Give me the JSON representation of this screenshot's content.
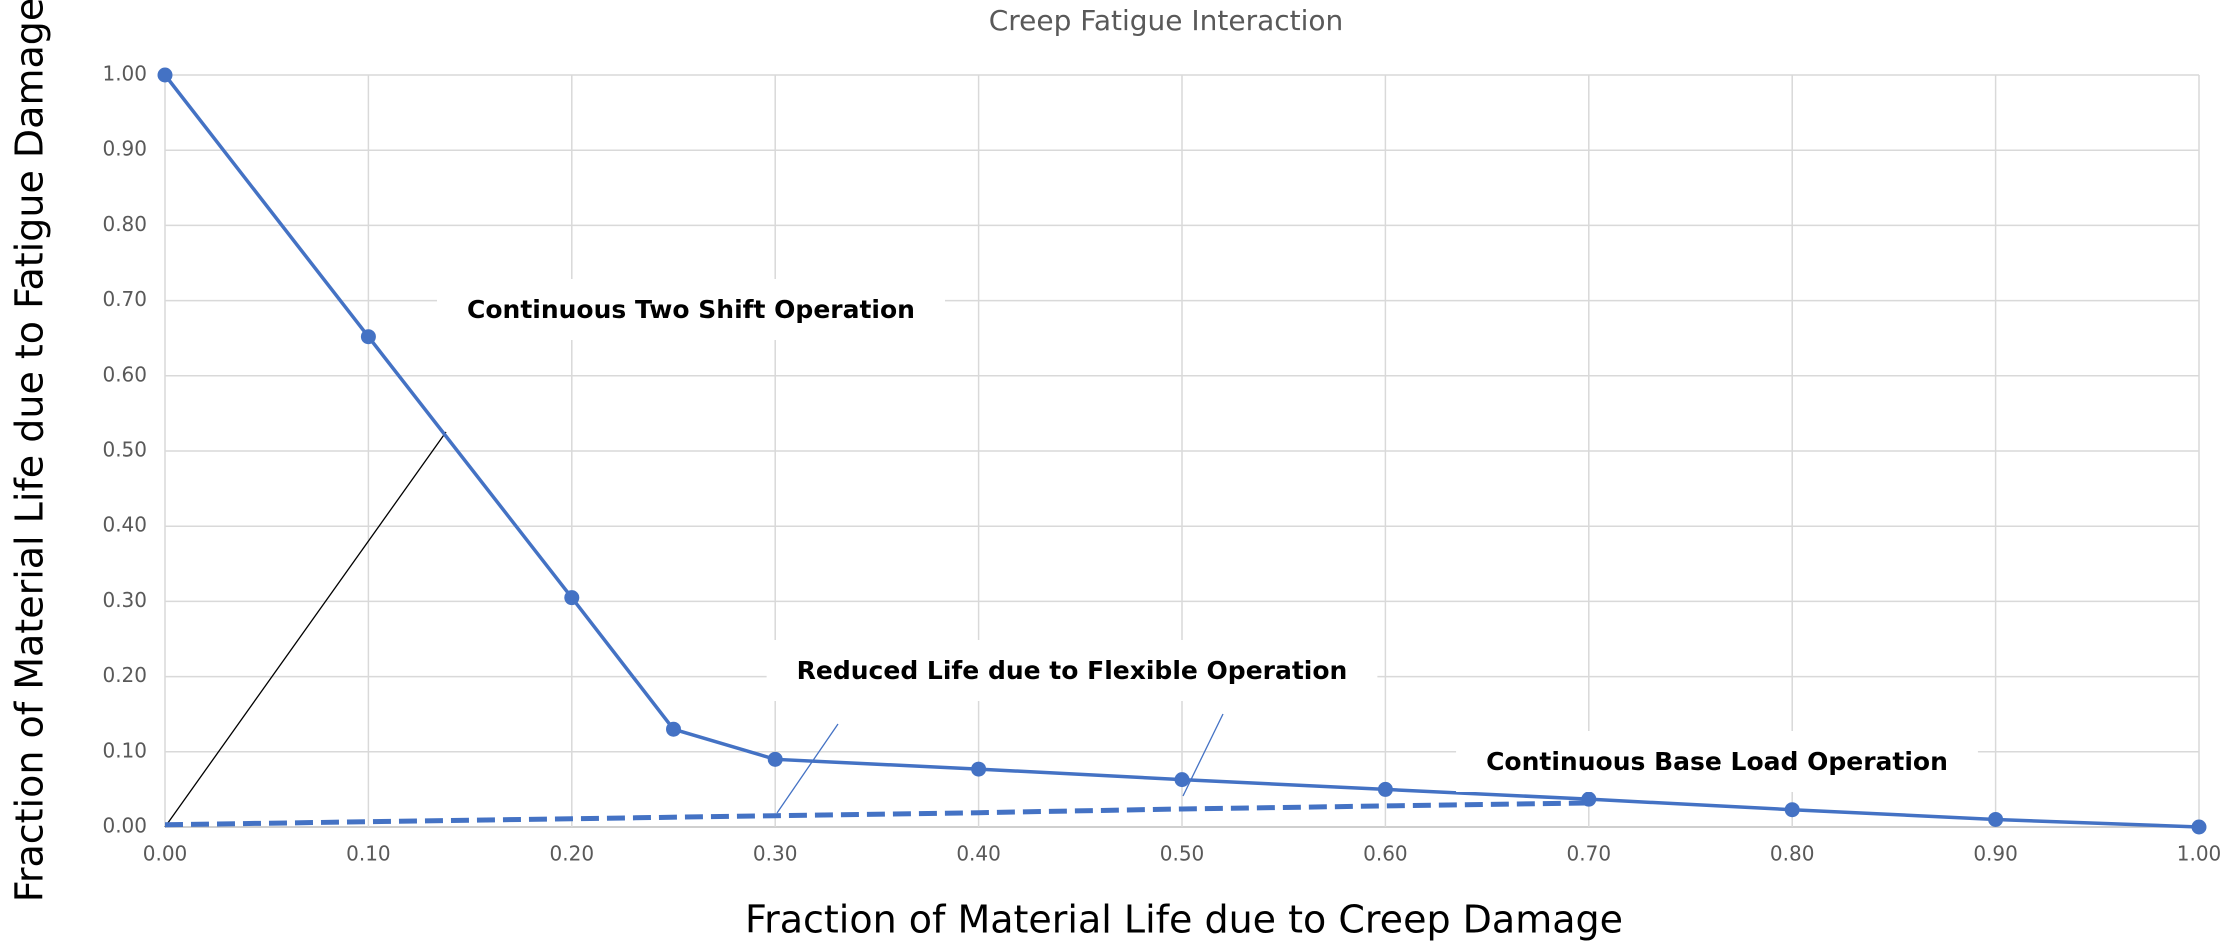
{
  "chart_data": {
    "type": "line",
    "title": "Creep Fatigue Interaction",
    "x_label": "Fraction of Material Life due to Creep Damage",
    "y_label": "Fraction of Material Life due to Fatigue Damage",
    "series": [
      {
        "color": "#4472c4",
        "style": "solid",
        "markers": true,
        "x": [
          0,
          0.1,
          0.2,
          0.25,
          0.3,
          0.4,
          0.5,
          0.6,
          0.7,
          0.8,
          0.9,
          1.0
        ],
        "values": [
          1.0,
          0.652,
          0.305,
          0.13,
          0.09,
          0.077,
          0.063,
          0.05,
          0.037,
          0.023,
          0.01,
          0
        ]
      },
      {
        "color": "#4472c4",
        "style": "dashed",
        "markers": false,
        "x": [
          0,
          0.1,
          0.2,
          0.3,
          0.4,
          0.5,
          0.6,
          0.7
        ],
        "values": [
          0.003,
          0.007,
          0.011,
          0.015,
          0.019,
          0.024,
          0.028,
          0.032
        ]
      }
    ],
    "annotations": [
      "Continuous Two Shift Operation",
      "Reduced Life due to Flexible Operation",
      "Continuous Base Load Operation"
    ],
    "xlim": [
      0,
      1
    ],
    "ylim": [
      0,
      1
    ],
    "xticks": [
      {
        "value": 0,
        "label": "0.00"
      },
      {
        "value": 0.1,
        "label": "0.10"
      },
      {
        "value": 0.2,
        "label": "0.20"
      },
      {
        "value": 0.3,
        "label": "0.30"
      },
      {
        "value": 0.4,
        "label": "0.40"
      },
      {
        "value": 0.5,
        "label": "0.50"
      },
      {
        "value": 0.6,
        "label": "0.60"
      },
      {
        "value": 0.7,
        "label": "0.70"
      },
      {
        "value": 0.8,
        "label": "0.80"
      },
      {
        "value": 0.9,
        "label": "0.90"
      },
      {
        "value": 1,
        "label": "1.00"
      }
    ],
    "yticks": [
      {
        "value": 0,
        "label": "0.00"
      },
      {
        "value": 0.1,
        "label": "0.10"
      },
      {
        "value": 0.2,
        "label": "0.20"
      },
      {
        "value": 0.3,
        "label": "0.30"
      },
      {
        "value": 0.4,
        "label": "0.40"
      },
      {
        "value": 0.5,
        "label": "0.50"
      },
      {
        "value": 0.6,
        "label": "0.60"
      },
      {
        "value": 0.7,
        "label": "0.70"
      },
      {
        "value": 0.8,
        "label": "0.80"
      },
      {
        "value": 0.9,
        "label": "0.90"
      },
      {
        "value": 1,
        "label": "1.00"
      }
    ],
    "grid": true
  }
}
